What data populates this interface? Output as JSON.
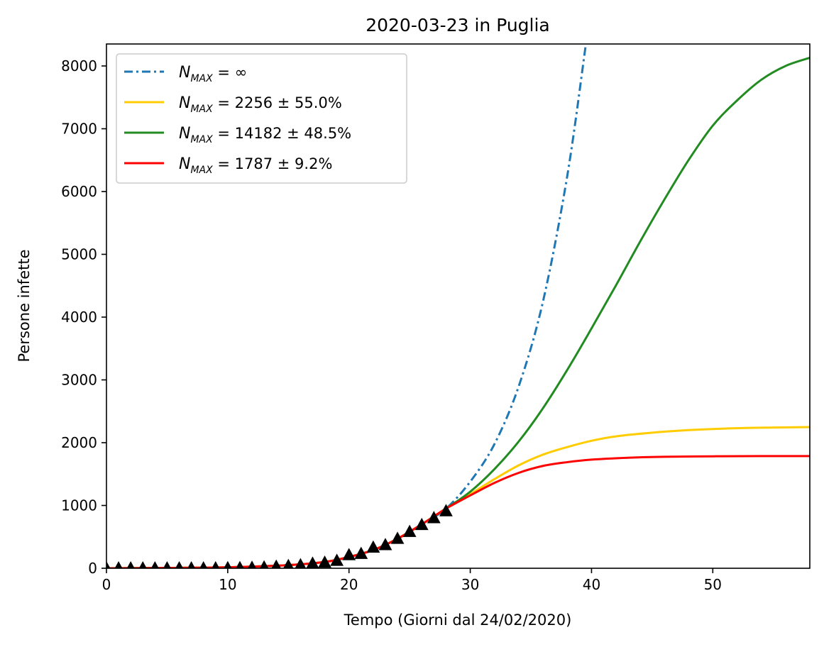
{
  "chart_data": {
    "type": "line",
    "title": "2020-03-23 in Puglia",
    "xlabel": "Tempo (Giorni dal 24/02/2020)",
    "ylabel": "Persone infette",
    "xlim": [
      0,
      58
    ],
    "ylim": [
      0,
      8350
    ],
    "x_ticks": [
      {
        "value": 0,
        "label": "0"
      },
      {
        "value": 10,
        "label": "10"
      },
      {
        "value": 20,
        "label": "20"
      },
      {
        "value": 30,
        "label": "30"
      },
      {
        "value": 40,
        "label": "40"
      },
      {
        "value": 50,
        "label": "50"
      }
    ],
    "y_ticks": [
      {
        "value": 0,
        "label": "0"
      },
      {
        "value": 1000,
        "label": "1000"
      },
      {
        "value": 2000,
        "label": "2000"
      },
      {
        "value": 3000,
        "label": "3000"
      },
      {
        "value": 4000,
        "label": "4000"
      },
      {
        "value": 5000,
        "label": "5000"
      },
      {
        "value": 6000,
        "label": "6000"
      },
      {
        "value": 7000,
        "label": "7000"
      },
      {
        "value": 8000,
        "label": "8000"
      }
    ],
    "grid": false,
    "legend_position": "top-left",
    "series": [
      {
        "name": "N_MAX = ∞",
        "legend_main": "N",
        "legend_sub": "MAX",
        "legend_rest": " = ∞",
        "color": "#1f77b4",
        "dash": "dashdot",
        "x": [
          0,
          5,
          10,
          15,
          18,
          20,
          22,
          24,
          26,
          28,
          30,
          32,
          34,
          36,
          38,
          39.5
        ],
        "y": [
          0,
          5,
          15,
          50,
          100,
          180,
          290,
          470,
          700,
          950,
          1380,
          1980,
          2900,
          4250,
          6250,
          8300
        ]
      },
      {
        "name": "N_MAX = 2256 ± 55.0%",
        "legend_main": "N",
        "legend_sub": "MAX",
        "legend_rest": " = 2256 ± 55.0%",
        "color": "#ffcc00",
        "dash": "solid",
        "x": [
          0,
          5,
          10,
          15,
          18,
          20,
          22,
          24,
          26,
          28,
          30,
          32,
          34,
          36,
          38,
          40,
          42,
          45,
          48,
          51,
          54,
          58
        ],
        "y": [
          0,
          5,
          15,
          50,
          100,
          180,
          290,
          470,
          700,
          950,
          1180,
          1420,
          1640,
          1810,
          1930,
          2030,
          2100,
          2160,
          2200,
          2225,
          2238,
          2248
        ]
      },
      {
        "name": "N_MAX = 14182 ± 48.5%",
        "legend_main": "N",
        "legend_sub": "MAX",
        "legend_rest": " = 14182 ± 48.5%",
        "color": "#228b22",
        "dash": "solid",
        "x": [
          0,
          5,
          10,
          15,
          18,
          20,
          22,
          24,
          26,
          28,
          30,
          32,
          34,
          36,
          38,
          40,
          42,
          44,
          46,
          48,
          50,
          52,
          54,
          56,
          58
        ],
        "y": [
          0,
          5,
          15,
          50,
          100,
          180,
          290,
          470,
          700,
          950,
          1220,
          1580,
          2020,
          2550,
          3160,
          3820,
          4500,
          5200,
          5870,
          6500,
          7050,
          7450,
          7780,
          8000,
          8130
        ]
      },
      {
        "name": "N_MAX = 1787 ± 9.2%",
        "legend_main": "N",
        "legend_sub": "MAX",
        "legend_rest": " = 1787 ± 9.2%",
        "color": "#ff0000",
        "dash": "solid",
        "x": [
          0,
          5,
          10,
          15,
          18,
          20,
          22,
          24,
          26,
          28,
          30,
          32,
          34,
          36,
          38,
          40,
          43,
          46,
          50,
          54,
          58
        ],
        "y": [
          0,
          5,
          15,
          50,
          100,
          180,
          290,
          470,
          700,
          950,
          1160,
          1360,
          1520,
          1630,
          1690,
          1730,
          1760,
          1775,
          1783,
          1786,
          1787
        ]
      }
    ],
    "observed": {
      "marker": "triangle",
      "color": "#000000",
      "x": [
        0,
        1,
        2,
        3,
        4,
        5,
        6,
        7,
        8,
        9,
        10,
        11,
        12,
        13,
        14,
        15,
        16,
        17,
        18,
        19,
        20,
        21,
        22,
        23,
        24,
        25,
        26,
        27,
        28
      ],
      "y": [
        0,
        0,
        0,
        0,
        0,
        0,
        0,
        0,
        0,
        1,
        3,
        5,
        9,
        15,
        26,
        37,
        50,
        75,
        90,
        120,
        210,
        230,
        330,
        370,
        470,
        580,
        690,
        800,
        910
      ]
    }
  }
}
